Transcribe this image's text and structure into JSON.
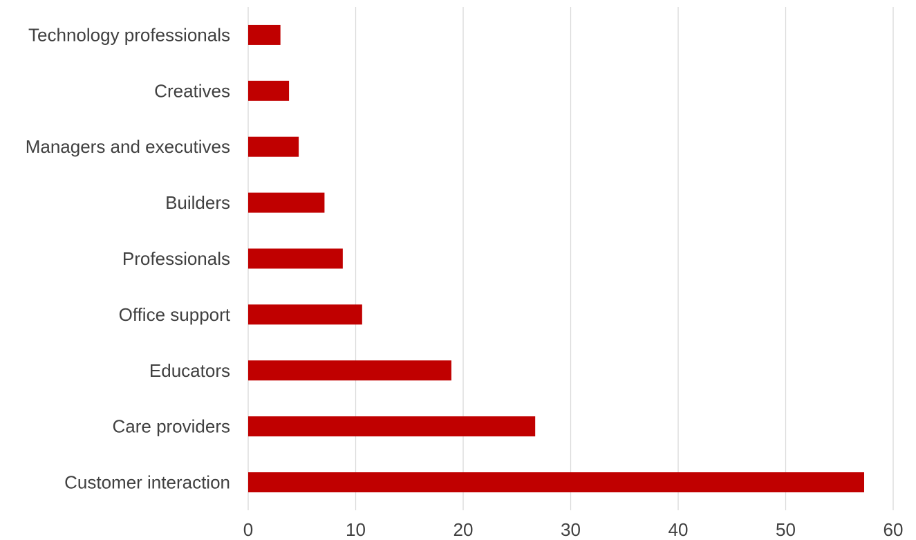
{
  "chart_data": {
    "type": "bar",
    "orientation": "horizontal",
    "categories": [
      "Technology professionals",
      "Creatives",
      "Managers and executives",
      "Builders",
      "Professionals",
      "Office support",
      "Educators",
      "Care providers",
      "Customer interaction"
    ],
    "values": [
      3.0,
      3.8,
      4.7,
      7.1,
      8.8,
      10.6,
      18.9,
      26.7,
      57.3
    ],
    "title": "",
    "xlabel": "",
    "ylabel": "",
    "xlim": [
      0,
      60
    ],
    "x_ticks": [
      0,
      10,
      20,
      30,
      40,
      50,
      60
    ],
    "grid": "vertical",
    "legend": "none",
    "bar_color": "#c00000",
    "grid_color": "#d9d9d9",
    "text_color": "#404040"
  }
}
